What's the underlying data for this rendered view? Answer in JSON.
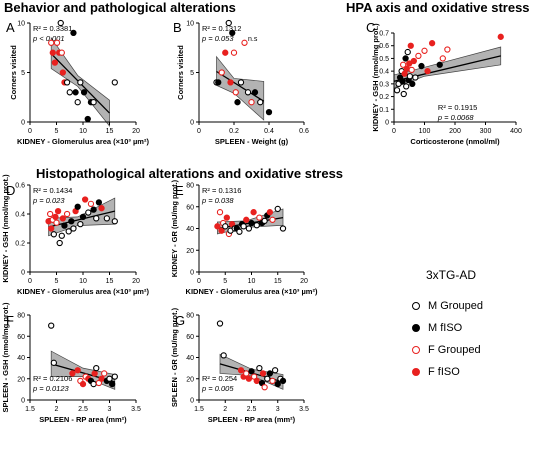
{
  "sections": {
    "behavior": "Behavior and pathological alterations",
    "hpa": "HPA axis and oxidative stress",
    "histo": "Histopathological alterations and oxidative stress"
  },
  "legend": {
    "title": "3xTG-AD",
    "items": [
      {
        "label": "M Grouped",
        "color": "#000000",
        "fill": false
      },
      {
        "label": "M fISO",
        "color": "#000000",
        "fill": true
      },
      {
        "label": "F Grouped",
        "color": "#e8211f",
        "fill": false
      },
      {
        "label": "F fISO",
        "color": "#e8211f",
        "fill": true
      }
    ]
  },
  "chart_data": [
    {
      "id": "A",
      "letter": "A",
      "type": "scatter",
      "xlabel": "KIDNEY - Glomerulus area (×10³ µm²)",
      "ylabel": "Corners visited",
      "xlim": [
        0,
        20
      ],
      "ylim": [
        0,
        10
      ],
      "xticks": [
        0,
        5,
        10,
        15,
        20
      ],
      "yticks": [
        0,
        5,
        10
      ],
      "stats": [
        "R² = 0.3381",
        "p < 0.001"
      ],
      "ns": "",
      "fit": [
        [
          4,
          6.9
        ],
        [
          15,
          0.9
        ]
      ],
      "band": [
        [
          4,
          8.5,
          5.4
        ],
        [
          9,
          4.7,
          3.6
        ],
        [
          15,
          2.2,
          -0.4
        ]
      ],
      "points": [
        {
          "x": 4.0,
          "y": 8.0,
          "g": "FG"
        },
        {
          "x": 4.3,
          "y": 7.0,
          "g": "FF"
        },
        {
          "x": 4.7,
          "y": 6.0,
          "g": "FF"
        },
        {
          "x": 5.1,
          "y": 8.0,
          "g": "FG"
        },
        {
          "x": 5.5,
          "y": 7.0,
          "g": "FF"
        },
        {
          "x": 5.8,
          "y": 10.0,
          "g": "MG"
        },
        {
          "x": 6.0,
          "y": 7.0,
          "g": "FG"
        },
        {
          "x": 6.2,
          "y": 5.0,
          "g": "FF"
        },
        {
          "x": 6.5,
          "y": 4.0,
          "g": "FF"
        },
        {
          "x": 7.0,
          "y": 4.0,
          "g": "MG"
        },
        {
          "x": 7.5,
          "y": 3.0,
          "g": "MG"
        },
        {
          "x": 8.2,
          "y": 9.0,
          "g": "MF"
        },
        {
          "x": 8.6,
          "y": 3.0,
          "g": "MF"
        },
        {
          "x": 9.0,
          "y": 2.0,
          "g": "MG"
        },
        {
          "x": 9.5,
          "y": 4.0,
          "g": "MG"
        },
        {
          "x": 10.2,
          "y": 3.0,
          "g": "MF"
        },
        {
          "x": 10.9,
          "y": 0.3,
          "g": "MF"
        },
        {
          "x": 11.5,
          "y": 2.0,
          "g": "MF"
        },
        {
          "x": 12.0,
          "y": 2.0,
          "g": "MG"
        },
        {
          "x": 16.0,
          "y": 4.0,
          "g": "MG"
        }
      ]
    },
    {
      "id": "B",
      "letter": "B",
      "type": "scatter",
      "xlabel": "SPLEEN - Weight (g)",
      "ylabel": "Corners visited",
      "xlim": [
        0,
        0.6
      ],
      "ylim": [
        0,
        10
      ],
      "xticks": [
        0,
        0.2,
        0.4,
        0.6
      ],
      "yticks": [
        0,
        5,
        10
      ],
      "stats": [
        "R² = 0.1312",
        "p = 0.053"
      ],
      "ns": "n.s",
      "fit": [
        [
          0.1,
          5.1
        ],
        [
          0.37,
          2.1
        ]
      ],
      "band": [
        [
          0.1,
          6.6,
          3.7
        ],
        [
          0.2,
          4.4,
          2.9
        ],
        [
          0.37,
          4.1,
          0.2
        ]
      ],
      "points": [
        {
          "x": 0.1,
          "y": 4.0,
          "g": "MG"
        },
        {
          "x": 0.11,
          "y": 4.0,
          "g": "MF"
        },
        {
          "x": 0.13,
          "y": 5.0,
          "g": "FG"
        },
        {
          "x": 0.15,
          "y": 7.0,
          "g": "FF"
        },
        {
          "x": 0.17,
          "y": 10.0,
          "g": "MG"
        },
        {
          "x": 0.18,
          "y": 4.0,
          "g": "FF"
        },
        {
          "x": 0.19,
          "y": 9.0,
          "g": "MF"
        },
        {
          "x": 0.2,
          "y": 7.0,
          "g": "FG"
        },
        {
          "x": 0.21,
          "y": 3.0,
          "g": "FG"
        },
        {
          "x": 0.22,
          "y": 2.0,
          "g": "MF"
        },
        {
          "x": 0.24,
          "y": 4.0,
          "g": "MG"
        },
        {
          "x": 0.26,
          "y": 8.0,
          "g": "FG"
        },
        {
          "x": 0.28,
          "y": 3.0,
          "g": "MG"
        },
        {
          "x": 0.3,
          "y": 2.0,
          "g": "FG"
        },
        {
          "x": 0.32,
          "y": 3.0,
          "g": "MF"
        },
        {
          "x": 0.35,
          "y": 2.0,
          "g": "MG"
        },
        {
          "x": 0.4,
          "y": 1.0,
          "g": "MF"
        }
      ]
    },
    {
      "id": "C",
      "letter": "C",
      "type": "scatter",
      "xlabel": "Corticosterone (nmol/ml)",
      "ylabel": "KIDNEY - GSH (nmol/mg prot.)",
      "xlim": [
        0,
        400
      ],
      "ylim": [
        0,
        0.7
      ],
      "xticks": [
        0,
        100,
        200,
        300,
        400
      ],
      "yticks": [
        0,
        0.1,
        0.2,
        0.3,
        0.4,
        0.5,
        0.6,
        0.7
      ],
      "stats": [
        "R² = 0.1915",
        "p = 0.0068"
      ],
      "ns": "",
      "fit": [
        [
          0,
          0.32
        ],
        [
          350,
          0.52
        ]
      ],
      "band": [
        [
          0,
          0.37,
          0.27
        ],
        [
          100,
          0.43,
          0.36
        ],
        [
          350,
          0.59,
          0.45
        ]
      ],
      "points": [
        {
          "x": 10,
          "y": 0.25,
          "g": "MG"
        },
        {
          "x": 15,
          "y": 0.3,
          "g": "MG"
        },
        {
          "x": 20,
          "y": 0.35,
          "g": "MF"
        },
        {
          "x": 25,
          "y": 0.4,
          "g": "MG"
        },
        {
          "x": 28,
          "y": 0.32,
          "g": "MF"
        },
        {
          "x": 30,
          "y": 0.45,
          "g": "FG"
        },
        {
          "x": 32,
          "y": 0.22,
          "g": "MG"
        },
        {
          "x": 35,
          "y": 0.38,
          "g": "FF"
        },
        {
          "x": 38,
          "y": 0.5,
          "g": "MF"
        },
        {
          "x": 40,
          "y": 0.28,
          "g": "MG"
        },
        {
          "x": 42,
          "y": 0.42,
          "g": "FF"
        },
        {
          "x": 45,
          "y": 0.55,
          "g": "MG"
        },
        {
          "x": 48,
          "y": 0.33,
          "g": "MF"
        },
        {
          "x": 50,
          "y": 0.46,
          "g": "FF"
        },
        {
          "x": 52,
          "y": 0.36,
          "g": "MG"
        },
        {
          "x": 55,
          "y": 0.6,
          "g": "FF"
        },
        {
          "x": 58,
          "y": 0.41,
          "g": "FG"
        },
        {
          "x": 60,
          "y": 0.3,
          "g": "MF"
        },
        {
          "x": 65,
          "y": 0.48,
          "g": "FF"
        },
        {
          "x": 70,
          "y": 0.35,
          "g": "MG"
        },
        {
          "x": 80,
          "y": 0.52,
          "g": "FG"
        },
        {
          "x": 90,
          "y": 0.44,
          "g": "MF"
        },
        {
          "x": 100,
          "y": 0.56,
          "g": "FG"
        },
        {
          "x": 110,
          "y": 0.4,
          "g": "FF"
        },
        {
          "x": 125,
          "y": 0.62,
          "g": "FF"
        },
        {
          "x": 150,
          "y": 0.45,
          "g": "MF"
        },
        {
          "x": 160,
          "y": 0.5,
          "g": "FG"
        },
        {
          "x": 175,
          "y": 0.57,
          "g": "FG"
        },
        {
          "x": 350,
          "y": 0.67,
          "g": "FF"
        }
      ]
    },
    {
      "id": "D",
      "letter": "D",
      "type": "scatter",
      "xlabel": "KIDNEY - Glomerulus area (×10³ µm²)",
      "ylabel": "KIDNEY - GSH (nmol/mg prot.)",
      "xlim": [
        0,
        20
      ],
      "ylim": [
        0,
        0.6
      ],
      "xticks": [
        0,
        5,
        10,
        15,
        20
      ],
      "yticks": [
        0,
        0.2,
        0.4,
        0.6
      ],
      "stats": [
        "R² = 0.1434",
        "p = 0.023"
      ],
      "ns": "",
      "fit": [
        [
          3.5,
          0.31
        ],
        [
          16,
          0.42
        ]
      ],
      "band": [
        [
          3.5,
          0.37,
          0.25
        ],
        [
          9,
          0.38,
          0.32
        ],
        [
          16,
          0.51,
          0.33
        ]
      ],
      "points": [
        {
          "x": 3.5,
          "y": 0.35,
          "g": "FF"
        },
        {
          "x": 3.8,
          "y": 0.4,
          "g": "FG"
        },
        {
          "x": 4.0,
          "y": 0.3,
          "g": "FF"
        },
        {
          "x": 4.3,
          "y": 0.36,
          "g": "FG"
        },
        {
          "x": 4.5,
          "y": 0.26,
          "g": "MG"
        },
        {
          "x": 4.8,
          "y": 0.38,
          "g": "FF"
        },
        {
          "x": 5.0,
          "y": 0.34,
          "g": "FG"
        },
        {
          "x": 5.3,
          "y": 0.42,
          "g": "FF"
        },
        {
          "x": 5.6,
          "y": 0.2,
          "g": "MG"
        },
        {
          "x": 6.0,
          "y": 0.25,
          "g": "MG"
        },
        {
          "x": 6.2,
          "y": 0.37,
          "g": "FF"
        },
        {
          "x": 6.5,
          "y": 0.32,
          "g": "MF"
        },
        {
          "x": 7.0,
          "y": 0.4,
          "g": "FG"
        },
        {
          "x": 7.3,
          "y": 0.28,
          "g": "MG"
        },
        {
          "x": 7.8,
          "y": 0.35,
          "g": "MF"
        },
        {
          "x": 8.2,
          "y": 0.3,
          "g": "MG"
        },
        {
          "x": 8.6,
          "y": 0.42,
          "g": "FF"
        },
        {
          "x": 9.0,
          "y": 0.45,
          "g": "MF"
        },
        {
          "x": 9.5,
          "y": 0.33,
          "g": "MG"
        },
        {
          "x": 10.0,
          "y": 0.38,
          "g": "MF"
        },
        {
          "x": 10.4,
          "y": 0.5,
          "g": "FF"
        },
        {
          "x": 11.0,
          "y": 0.41,
          "g": "MG"
        },
        {
          "x": 11.5,
          "y": 0.47,
          "g": "FG"
        },
        {
          "x": 12.0,
          "y": 0.43,
          "g": "MF"
        },
        {
          "x": 12.5,
          "y": 0.37,
          "g": "MG"
        },
        {
          "x": 13.0,
          "y": 0.48,
          "g": "MF"
        },
        {
          "x": 13.5,
          "y": 0.44,
          "g": "FF"
        },
        {
          "x": 14.5,
          "y": 0.37,
          "g": "MG"
        },
        {
          "x": 16.0,
          "y": 0.35,
          "g": "MG"
        }
      ]
    },
    {
      "id": "E",
      "letter": "E",
      "type": "scatter",
      "xlabel": "KIDNEY - Glomerulus area (×10³ µm²)",
      "ylabel": "KIDNEY - GR (mU/mg prot.)",
      "xlim": [
        0,
        20
      ],
      "ylim": [
        0,
        80
      ],
      "xticks": [
        0,
        5,
        10,
        15,
        20
      ],
      "yticks": [
        0,
        20,
        40,
        60,
        80
      ],
      "stats": [
        "R² = 0.1316",
        "p = 0.038"
      ],
      "ns": "",
      "fit": [
        [
          3.5,
          40
        ],
        [
          16,
          50
        ]
      ],
      "band": [
        [
          3.5,
          46,
          35
        ],
        [
          9,
          47,
          41
        ],
        [
          16,
          58,
          43
        ]
      ],
      "points": [
        {
          "x": 3.5,
          "y": 42,
          "g": "FF"
        },
        {
          "x": 4.0,
          "y": 55,
          "g": "FG"
        },
        {
          "x": 4.3,
          "y": 38,
          "g": "FF"
        },
        {
          "x": 4.6,
          "y": 45,
          "g": "FG"
        },
        {
          "x": 5.0,
          "y": 42,
          "g": "MG"
        },
        {
          "x": 5.3,
          "y": 50,
          "g": "FF"
        },
        {
          "x": 5.7,
          "y": 35,
          "g": "FG"
        },
        {
          "x": 6.0,
          "y": 38,
          "g": "MG"
        },
        {
          "x": 6.3,
          "y": 44,
          "g": "FF"
        },
        {
          "x": 6.8,
          "y": 40,
          "g": "MG"
        },
        {
          "x": 7.2,
          "y": 40,
          "g": "MF"
        },
        {
          "x": 7.7,
          "y": 37,
          "g": "MG"
        },
        {
          "x": 8.2,
          "y": 44,
          "g": "MF"
        },
        {
          "x": 8.5,
          "y": 42,
          "g": "MG"
        },
        {
          "x": 9.0,
          "y": 48,
          "g": "FF"
        },
        {
          "x": 9.5,
          "y": 40,
          "g": "MG"
        },
        {
          "x": 10.0,
          "y": 45,
          "g": "MF"
        },
        {
          "x": 10.4,
          "y": 55,
          "g": "FF"
        },
        {
          "x": 11.0,
          "y": 43,
          "g": "MG"
        },
        {
          "x": 11.5,
          "y": 50,
          "g": "FG"
        },
        {
          "x": 12.0,
          "y": 45,
          "g": "MF"
        },
        {
          "x": 12.5,
          "y": 47,
          "g": "MG"
        },
        {
          "x": 13.0,
          "y": 52,
          "g": "MF"
        },
        {
          "x": 13.5,
          "y": 55,
          "g": "FF"
        },
        {
          "x": 14.0,
          "y": 48,
          "g": "FG"
        },
        {
          "x": 15.0,
          "y": 58,
          "g": "MG"
        },
        {
          "x": 16.0,
          "y": 40,
          "g": "MG"
        }
      ]
    },
    {
      "id": "F",
      "letter": "F",
      "type": "scatter",
      "xlabel": "SPLEEN - RP area (mm²)",
      "ylabel": "SPLEEN - GSH (nmol/mg prot.)",
      "xlim": [
        1.5,
        3.5
      ],
      "ylim": [
        0,
        80
      ],
      "xticks": [
        1.5,
        2.0,
        2.5,
        3.0,
        3.5
      ],
      "yticks": [
        0,
        20,
        40,
        60,
        80
      ],
      "stats": [
        "R² = 0.2106",
        "p = 0.0123"
      ],
      "ns": "",
      "fit": [
        [
          1.9,
          34
        ],
        [
          3.1,
          17
        ]
      ],
      "band": [
        [
          1.9,
          46,
          22
        ],
        [
          2.5,
          30,
          22
        ],
        [
          3.1,
          24,
          10
        ]
      ],
      "points": [
        {
          "x": 1.9,
          "y": 70,
          "g": "MG"
        },
        {
          "x": 1.95,
          "y": 35,
          "g": "MG"
        },
        {
          "x": 2.3,
          "y": 25,
          "g": "FF"
        },
        {
          "x": 2.4,
          "y": 28,
          "g": "FF"
        },
        {
          "x": 2.45,
          "y": 18,
          "g": "FG"
        },
        {
          "x": 2.5,
          "y": 15,
          "g": "FF"
        },
        {
          "x": 2.55,
          "y": 22,
          "g": "FG"
        },
        {
          "x": 2.6,
          "y": 20,
          "g": "FF"
        },
        {
          "x": 2.65,
          "y": 18,
          "g": "MF"
        },
        {
          "x": 2.7,
          "y": 15,
          "g": "MG"
        },
        {
          "x": 2.72,
          "y": 25,
          "g": "FF"
        },
        {
          "x": 2.75,
          "y": 30,
          "g": "MG"
        },
        {
          "x": 2.8,
          "y": 16,
          "g": "FG"
        },
        {
          "x": 2.85,
          "y": 20,
          "g": "FF"
        },
        {
          "x": 2.9,
          "y": 25,
          "g": "FG"
        },
        {
          "x": 2.95,
          "y": 18,
          "g": "MF"
        },
        {
          "x": 3.0,
          "y": 20,
          "g": "MG"
        },
        {
          "x": 3.05,
          "y": 15,
          "g": "MF"
        },
        {
          "x": 3.1,
          "y": 22,
          "g": "MG"
        }
      ]
    },
    {
      "id": "G",
      "letter": "G",
      "type": "scatter",
      "xlabel": "SPLEEN - RP area (mm²)",
      "ylabel": "SPLEEN - GR (mU/mg prot.)",
      "xlim": [
        1.5,
        3.5
      ],
      "ylim": [
        0,
        80
      ],
      "xticks": [
        1.5,
        2.0,
        2.5,
        3.0,
        3.5
      ],
      "yticks": [
        0,
        20,
        40,
        60,
        80
      ],
      "stats": [
        "R² = 0.254",
        "p = 0.005"
      ],
      "ns": "",
      "fit": [
        [
          1.9,
          34
        ],
        [
          3.1,
          17
        ]
      ],
      "band": [
        [
          1.9,
          43,
          25
        ],
        [
          2.5,
          29,
          23
        ],
        [
          3.1,
          24,
          10
        ]
      ],
      "points": [
        {
          "x": 1.9,
          "y": 72,
          "g": "MG"
        },
        {
          "x": 1.97,
          "y": 42,
          "g": "MG"
        },
        {
          "x": 2.3,
          "y": 28,
          "g": "FF"
        },
        {
          "x": 2.35,
          "y": 22,
          "g": "FF"
        },
        {
          "x": 2.4,
          "y": 25,
          "g": "FG"
        },
        {
          "x": 2.45,
          "y": 20,
          "g": "FF"
        },
        {
          "x": 2.5,
          "y": 27,
          "g": "MF"
        },
        {
          "x": 2.55,
          "y": 22,
          "g": "FG"
        },
        {
          "x": 2.6,
          "y": 18,
          "g": "FF"
        },
        {
          "x": 2.65,
          "y": 30,
          "g": "MG"
        },
        {
          "x": 2.7,
          "y": 16,
          "g": "MF"
        },
        {
          "x": 2.72,
          "y": 25,
          "g": "FF"
        },
        {
          "x": 2.75,
          "y": 12,
          "g": "FG"
        },
        {
          "x": 2.8,
          "y": 20,
          "g": "MG"
        },
        {
          "x": 2.85,
          "y": 25,
          "g": "MF"
        },
        {
          "x": 2.9,
          "y": 18,
          "g": "FG"
        },
        {
          "x": 2.95,
          "y": 28,
          "g": "MG"
        },
        {
          "x": 3.0,
          "y": 15,
          "g": "MF"
        },
        {
          "x": 3.05,
          "y": 20,
          "g": "MG"
        },
        {
          "x": 3.1,
          "y": 18,
          "g": "MF"
        }
      ]
    }
  ]
}
